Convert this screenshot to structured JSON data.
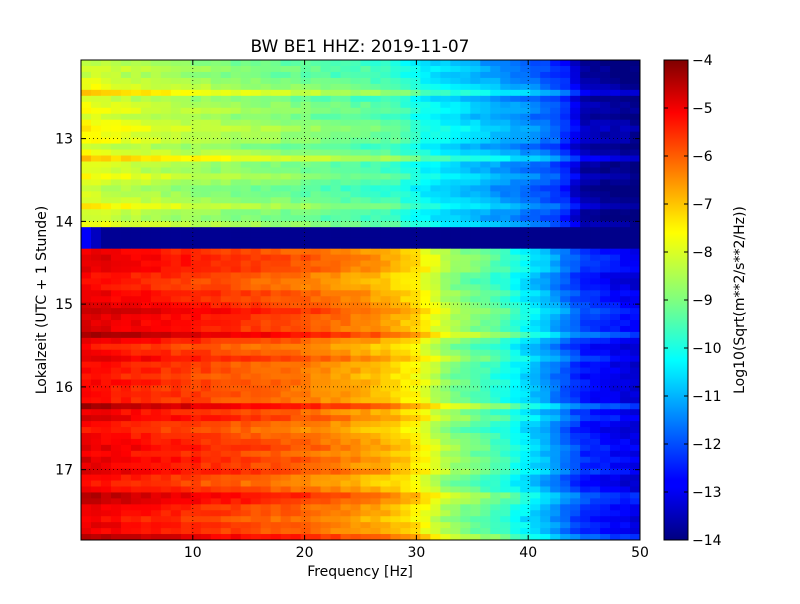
{
  "chart_data": {
    "type": "heatmap",
    "title": "BW BE1 HHZ: 2019-11-07",
    "xlabel": "Frequency [Hz]",
    "ylabel": "Lokalzeit (UTC + 1 Stunde)",
    "xlim": [
      0,
      50
    ],
    "ylim": [
      17.85,
      12.05
    ],
    "x_ticks": [
      10,
      20,
      30,
      40,
      50
    ],
    "y_ticks": [
      13,
      14,
      15,
      16,
      17
    ],
    "grid": true,
    "colorbar": {
      "label": "Log10(Sqrt(m**2/s**2/Hz))",
      "range": [
        -14,
        -4
      ],
      "ticks": [
        -4,
        -5,
        -6,
        -7,
        -8,
        -9,
        -10,
        -11,
        -12,
        -13,
        -14
      ],
      "tick_labels": [
        "−4",
        "−5",
        "−6",
        "−7",
        "−8",
        "−9",
        "−10",
        "−11",
        "−12",
        "−13",
        "−14"
      ],
      "colormap": "jet"
    },
    "regions": [
      {
        "from_hour": 12.05,
        "to_hour": 14.07,
        "level_vs_frequency": [
          [
            0,
            -8.0
          ],
          [
            5,
            -8.3
          ],
          [
            10,
            -8.6
          ],
          [
            20,
            -9.1
          ],
          [
            28,
            -9.6
          ],
          [
            31,
            -10.3
          ],
          [
            35,
            -10.8
          ],
          [
            40,
            -11.5
          ],
          [
            43,
            -12.2
          ],
          [
            45,
            -13.6
          ],
          [
            50,
            -14.0
          ]
        ]
      },
      {
        "from_hour": 14.07,
        "to_hour": 14.33,
        "level_vs_frequency": [
          [
            0,
            -12.5
          ],
          [
            2,
            -13.8
          ],
          [
            50,
            -13.9
          ]
        ]
      },
      {
        "from_hour": 14.33,
        "to_hour": 17.85,
        "level_vs_frequency": [
          [
            0,
            -5.1
          ],
          [
            5,
            -5.4
          ],
          [
            10,
            -5.7
          ],
          [
            20,
            -6.3
          ],
          [
            27,
            -7.0
          ],
          [
            30,
            -7.6
          ],
          [
            33,
            -8.8
          ],
          [
            38,
            -9.8
          ],
          [
            42,
            -11.2
          ],
          [
            45,
            -12.4
          ],
          [
            50,
            -13.1
          ]
        ]
      }
    ]
  }
}
